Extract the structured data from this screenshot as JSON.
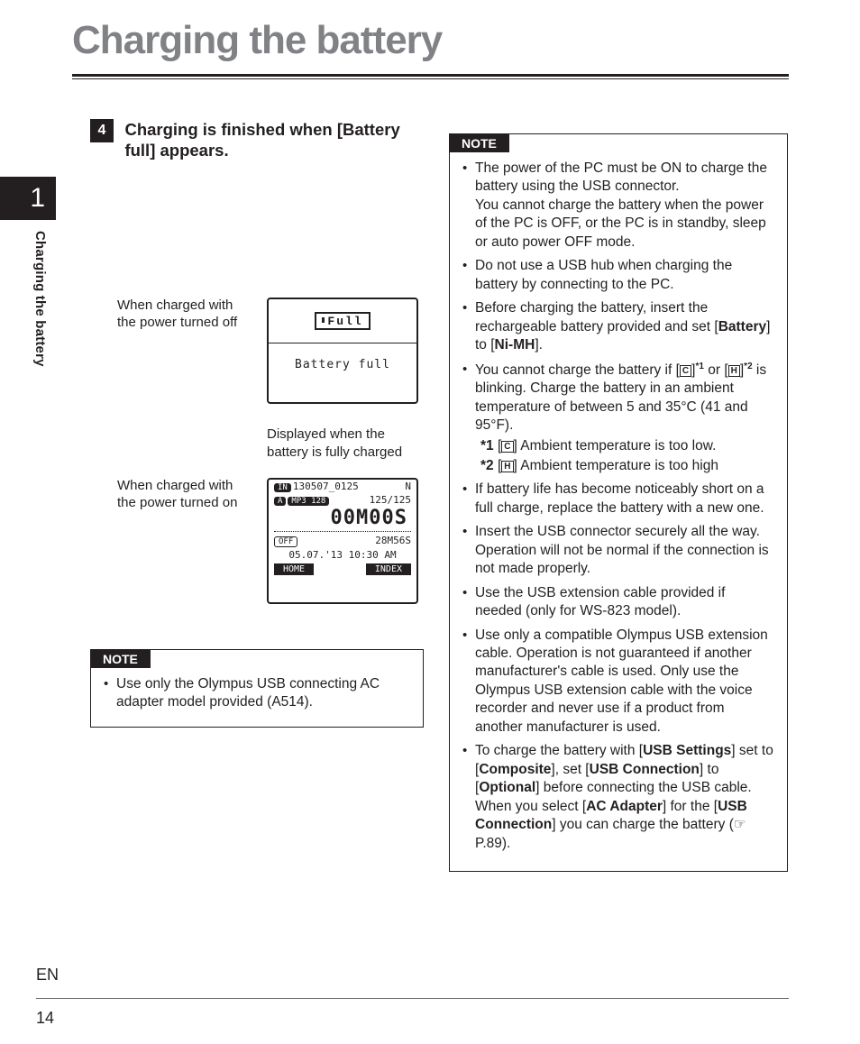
{
  "page": {
    "title": "Charging the battery",
    "chapter_number": "1",
    "side_label": "Charging the battery",
    "lang": "EN",
    "page_number": "14"
  },
  "step": {
    "number": "4",
    "heading_pre": "Charging is finished when [",
    "heading_bold": "Battery full",
    "heading_post": "] appears."
  },
  "captions": {
    "power_off": "When charged with the power turned off",
    "charged_full": "Displayed when the battery is fully charged",
    "power_on": "When charged with the power turned on"
  },
  "lcd_simple": {
    "icon_label": "Full",
    "text": "Battery full"
  },
  "lcd_detail": {
    "line1_left": "IN",
    "line1_file": "130507_0125",
    "line1_right": "N",
    "line2_pill1": "A",
    "line2_pill2": "MP3 128",
    "line2_right": "125/125",
    "big": "00M00S",
    "line4_left": "OFF",
    "line4_right": "28M56S",
    "date": "05.07.'13 10:30 AM",
    "btn_left": "HOME",
    "btn_right": "INDEX"
  },
  "note_left": {
    "label": "NOTE",
    "items": [
      {
        "text": "Use only the Olympus USB connecting AC adapter model provided (A514)."
      }
    ]
  },
  "note_right": {
    "label": "NOTE",
    "items": {
      "i0a": "The power of the PC must be ON to charge the battery using the USB connector.",
      "i0b": "You cannot charge the battery when the power of the PC is OFF, or the PC is in standby, sleep or auto power OFF mode.",
      "i1": "Do not use a USB hub when charging the battery by connecting to the PC.",
      "i2_pre": "Before charging the battery, insert the rechargeable battery provided and set [",
      "i2_b1": "Battery",
      "i2_mid": "] to [",
      "i2_b2": "Ni-MH",
      "i2_post": "].",
      "i3_pre": "You cannot charge the battery if [",
      "i3_s1": "*1",
      "i3_mid": " or [",
      "i3_s2": "*2",
      "i3_post": " is blinking. Charge the battery in an ambient temperature of between 5 and 35°C (41 and 95°F).",
      "i3_sub1_b": "*1",
      "i3_sub1": " Ambient temperature is too low.",
      "i3_sub2_b": "*2",
      "i3_sub2": " Ambient temperature is too high",
      "i4": "If battery life has become noticeably short on a full charge, replace the battery with a new one.",
      "i5": "Insert the USB connector securely all the way. Operation will not be normal if the connection is not made properly.",
      "i6": "Use the USB extension cable provided if needed (only for WS-823 model).",
      "i7": "Use only a compatible Olympus USB extension cable. Operation is not guaranteed if another manufacturer's cable is used. Only use the Olympus USB extension cable with the voice recorder and never use if a product from another manufacturer is used.",
      "i8_pre": "To charge the battery with [",
      "i8_b1": "USB Settings",
      "i8_m1": "] set to [",
      "i8_b2": "Composite",
      "i8_m2": "], set [",
      "i8_b3": "USB Connection",
      "i8_m3": "] to [",
      "i8_b4": "Optional",
      "i8_m4": "] before connecting the USB cable.",
      "i8_line2_pre": "When you select [",
      "i8_b5": "AC Adapter",
      "i8_m5": "] for the [",
      "i8_b6": "USB Connection",
      "i8_post": "] you can charge the battery (☞ P.89)."
    }
  }
}
